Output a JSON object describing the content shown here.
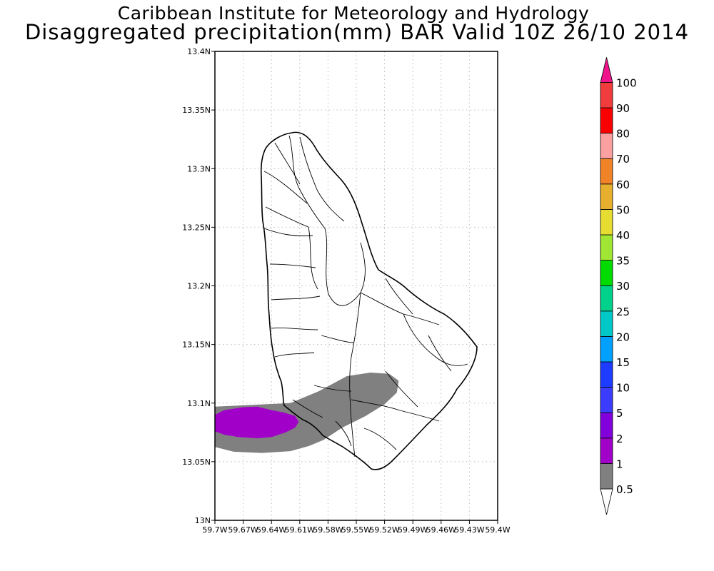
{
  "header": {
    "title": "Caribbean Institute for Meteorology and Hydrology",
    "subtitle": "Disaggregated precipitation(mm) BAR Valid 10Z 26/10 2014"
  },
  "map": {
    "region": "Barbados",
    "grid": true,
    "lat_range": [
      13.0,
      13.4
    ],
    "lon_range": [
      -59.7,
      -59.4
    ],
    "lat_ticks": [
      {
        "value": 13.0,
        "label": "13N"
      },
      {
        "value": 13.05,
        "label": "13.05N"
      },
      {
        "value": 13.1,
        "label": "13.1N"
      },
      {
        "value": 13.15,
        "label": "13.15N"
      },
      {
        "value": 13.2,
        "label": "13.2N"
      },
      {
        "value": 13.25,
        "label": "13.25N"
      },
      {
        "value": 13.3,
        "label": "13.3N"
      },
      {
        "value": 13.35,
        "label": "13.35N"
      },
      {
        "value": 13.4,
        "label": "13.4N"
      }
    ],
    "lon_ticks": [
      {
        "value": -59.7,
        "label": "59.7W"
      },
      {
        "value": -59.67,
        "label": "59.67W"
      },
      {
        "value": -59.64,
        "label": "59.64W"
      },
      {
        "value": -59.61,
        "label": "59.61W"
      },
      {
        "value": -59.58,
        "label": "59.58W"
      },
      {
        "value": -59.55,
        "label": "59.55W"
      },
      {
        "value": -59.52,
        "label": "59.52W"
      },
      {
        "value": -59.49,
        "label": "59.49W"
      },
      {
        "value": -59.46,
        "label": "59.46W"
      },
      {
        "value": -59.43,
        "label": "59.43W"
      },
      {
        "value": -59.4,
        "label": "59.4W"
      }
    ],
    "precip_areas": [
      {
        "range_mm": "0.5-1",
        "color": "#808080",
        "points": [
          [
            -59.7,
            13.097
          ],
          [
            -59.66,
            13.0985
          ],
          [
            -59.62,
            13.1
          ],
          [
            -59.59,
            13.11
          ],
          [
            -59.56,
            13.123
          ],
          [
            -59.535,
            13.126
          ],
          [
            -59.515,
            13.125
          ],
          [
            -59.505,
            13.119
          ],
          [
            -59.507,
            13.109
          ],
          [
            -59.52,
            13.099
          ],
          [
            -59.54,
            13.089
          ],
          [
            -59.565,
            13.079
          ],
          [
            -59.585,
            13.0685
          ],
          [
            -59.6,
            13.0635
          ],
          [
            -59.62,
            13.059
          ],
          [
            -59.65,
            13.0575
          ],
          [
            -59.68,
            13.0585
          ],
          [
            -59.7,
            13.0625
          ]
        ]
      },
      {
        "range_mm": "1-2",
        "color": "#a000c8",
        "points": [
          [
            -59.7,
            13.09
          ],
          [
            -59.69,
            13.094
          ],
          [
            -59.67,
            13.0965
          ],
          [
            -59.655,
            13.097
          ],
          [
            -59.64,
            13.094
          ],
          [
            -59.627,
            13.092
          ],
          [
            -59.615,
            13.089
          ],
          [
            -59.611,
            13.084
          ],
          [
            -59.615,
            13.079
          ],
          [
            -59.625,
            13.075
          ],
          [
            -59.64,
            13.071
          ],
          [
            -59.655,
            13.07
          ],
          [
            -59.675,
            13.071
          ],
          [
            -59.69,
            13.073
          ],
          [
            -59.7,
            13.076
          ]
        ]
      }
    ]
  },
  "colorbar": {
    "levels": [
      {
        "label": "0.5",
        "color": "#ffffff"
      },
      {
        "label": "1",
        "color": "#808080"
      },
      {
        "label": "2",
        "color": "#a000c8"
      },
      {
        "label": "5",
        "color": "#8200dc"
      },
      {
        "label": "10",
        "color": "#3c3cff"
      },
      {
        "label": "15",
        "color": "#1e3cff"
      },
      {
        "label": "20",
        "color": "#00a0ff"
      },
      {
        "label": "25",
        "color": "#00c8c8"
      },
      {
        "label": "30",
        "color": "#00d28c"
      },
      {
        "label": "35",
        "color": "#00dc00"
      },
      {
        "label": "40",
        "color": "#a0e632"
      },
      {
        "label": "50",
        "color": "#e6dc32"
      },
      {
        "label": "60",
        "color": "#e6af2d"
      },
      {
        "label": "70",
        "color": "#f08228"
      },
      {
        "label": "80",
        "color": "#faa0a0"
      },
      {
        "label": "90",
        "color": "#fa0000"
      },
      {
        "label": "100",
        "color": "#f03c3c"
      }
    ],
    "top_color": "#f0148c"
  }
}
